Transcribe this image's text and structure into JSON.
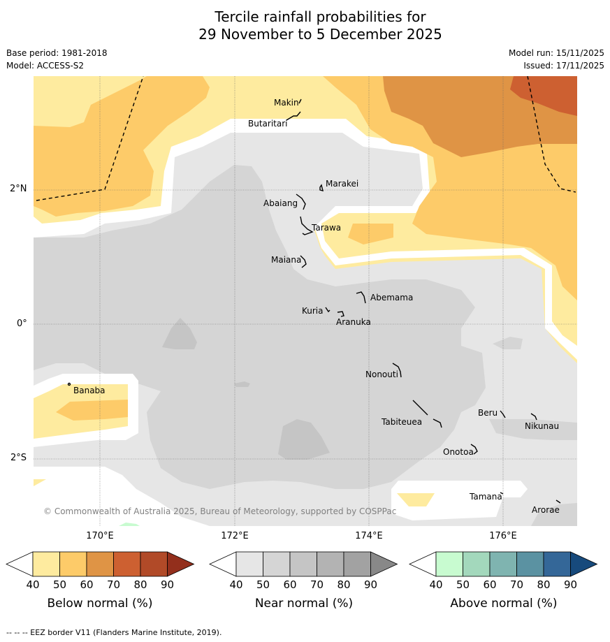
{
  "title_line1": "Tercile rainfall probabilities for",
  "title_line2": "29 November to 5 December 2025",
  "base_period": "Base period: 1981-2018",
  "model": "Model: ACCESS-S2",
  "model_run": "Model run: 15/11/2025",
  "issued": "Issued: 17/11/2025",
  "copyright": "© Commonwealth of Australia 2025, Bureau of Meteorology, supported by COSPPac",
  "footnote": "--  --  -- EEZ border V11 (Flanders Marine Institute, 2019).",
  "lat_labels": [
    "2°N",
    "0°",
    "2°S"
  ],
  "lon_labels": [
    "170°E",
    "172°E",
    "174°E",
    "176°E"
  ],
  "islands": {
    "makin": "Makin",
    "butaritari": "Butaritari",
    "marakei": "Marakei",
    "abaiang": "Abaiang",
    "tarawa": "Tarawa",
    "maiana": "Maiana",
    "abemama": "Abemama",
    "kuria": "Kuria",
    "aranuka": "Aranuka",
    "nonouti": "Nonouti",
    "banaba": "Banaba",
    "beru": "Beru",
    "nikunau": "Nikunau",
    "tabiteuea": "Tabiteuea",
    "onotoa": "Onotoa",
    "tamana": "Tamana",
    "arorae": "Arorae"
  },
  "colorbars": [
    {
      "label": "Below normal (%)",
      "ticks": [
        "40",
        "50",
        "60",
        "70",
        "80",
        "90"
      ],
      "colors": [
        "#ffffff",
        "#feeb9f",
        "#fdcb69",
        "#df9445",
        "#cd6031",
        "#b14a28",
        "#932f1c"
      ]
    },
    {
      "label": "Near normal (%)",
      "ticks": [
        "40",
        "50",
        "60",
        "70",
        "80",
        "90"
      ],
      "colors": [
        "#ffffff",
        "#e6e6e6",
        "#d5d5d5",
        "#c5c5c5",
        "#b3b3b3",
        "#a2a2a2",
        "#888888"
      ]
    },
    {
      "label": "Above normal (%)",
      "ticks": [
        "40",
        "50",
        "60",
        "70",
        "80",
        "90"
      ],
      "colors": [
        "#ffffff",
        "#c8fbd0",
        "#a3d8bc",
        "#7fb4b0",
        "#5b92a2",
        "#346798",
        "#174a7c"
      ]
    }
  ],
  "colors": {
    "below_50": "#feeb9f",
    "below_60": "#fdcb69",
    "below_70": "#df9445",
    "below_80": "#cd6031",
    "near_50": "#e6e6e6",
    "near_60": "#d5d5d5",
    "near_70": "#c5c5c5",
    "above_50": "#c8fbd0"
  }
}
